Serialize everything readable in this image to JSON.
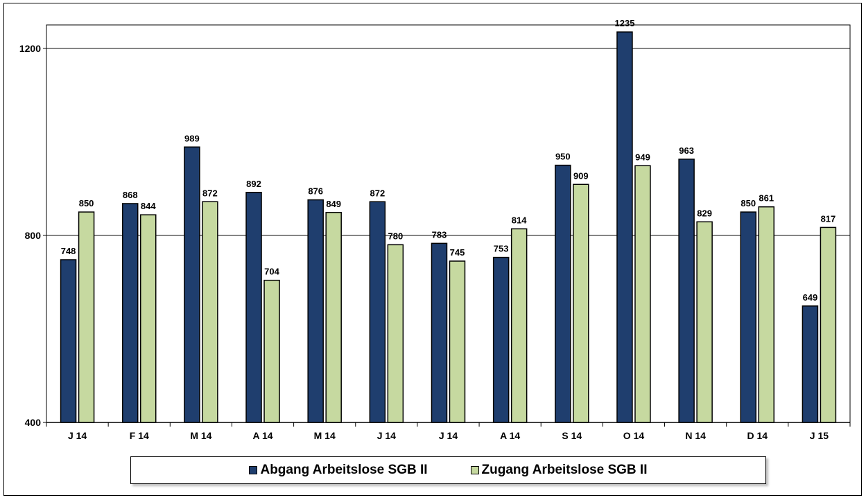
{
  "chart_data": {
    "type": "bar",
    "categories": [
      "J 14",
      "F 14",
      "M 14",
      "A 14",
      "M 14",
      "J 14",
      "J 14",
      "A 14",
      "S 14",
      "O 14",
      "N 14",
      "D 14",
      "J 15"
    ],
    "series": [
      {
        "name": "Abgang Arbeitslose SGB II",
        "color": "#1f3e6e",
        "values": [
          748,
          868,
          989,
          892,
          876,
          872,
          783,
          753,
          950,
          1235,
          963,
          850,
          649
        ]
      },
      {
        "name": "Zugang Arbeitslose SGB II",
        "color": "#c6d9a0",
        "values": [
          850,
          844,
          872,
          704,
          849,
          780,
          745,
          814,
          909,
          949,
          829,
          861,
          817
        ]
      }
    ],
    "yticks": [
      400,
      800,
      1200
    ],
    "ylim": [
      400,
      1250
    ],
    "grid": true,
    "legend_position": "bottom",
    "title": "",
    "xlabel": "",
    "ylabel": ""
  }
}
